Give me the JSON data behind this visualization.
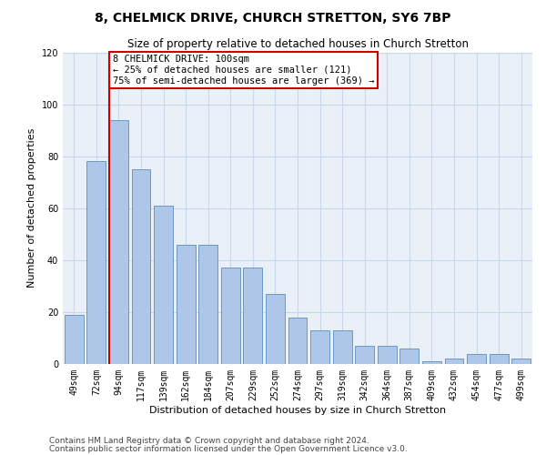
{
  "title": "8, CHELMICK DRIVE, CHURCH STRETTON, SY6 7BP",
  "subtitle": "Size of property relative to detached houses in Church Stretton",
  "xlabel": "Distribution of detached houses by size in Church Stretton",
  "ylabel": "Number of detached properties",
  "categories": [
    "49sqm",
    "72sqm",
    "94sqm",
    "117sqm",
    "139sqm",
    "162sqm",
    "184sqm",
    "207sqm",
    "229sqm",
    "252sqm",
    "274sqm",
    "297sqm",
    "319sqm",
    "342sqm",
    "364sqm",
    "387sqm",
    "409sqm",
    "432sqm",
    "454sqm",
    "477sqm",
    "499sqm"
  ],
  "values": [
    19,
    78,
    94,
    75,
    61,
    46,
    46,
    37,
    37,
    27,
    18,
    13,
    13,
    7,
    7,
    6,
    1,
    2,
    4,
    4,
    2
  ],
  "bar_color": "#aec6e8",
  "bar_edge_color": "#5a8fc2",
  "red_line_index": 2,
  "annotation_line1": "8 CHELMICK DRIVE: 100sqm",
  "annotation_line2": "← 25% of detached houses are smaller (121)",
  "annotation_line3": "75% of semi-detached houses are larger (369) →",
  "annotation_box_color": "#ffffff",
  "annotation_box_edge_color": "#cc0000",
  "red_line_color": "#cc0000",
  "ylim": [
    0,
    120
  ],
  "yticks": [
    0,
    20,
    40,
    60,
    80,
    100,
    120
  ],
  "grid_color": "#c8d8ec",
  "background_color": "#eaf0f8",
  "footer_line1": "Contains HM Land Registry data © Crown copyright and database right 2024.",
  "footer_line2": "Contains public sector information licensed under the Open Government Licence v3.0.",
  "title_fontsize": 10,
  "subtitle_fontsize": 8.5,
  "xlabel_fontsize": 8,
  "ylabel_fontsize": 8,
  "tick_fontsize": 7,
  "annotation_fontsize": 7.5,
  "footer_fontsize": 6.5
}
